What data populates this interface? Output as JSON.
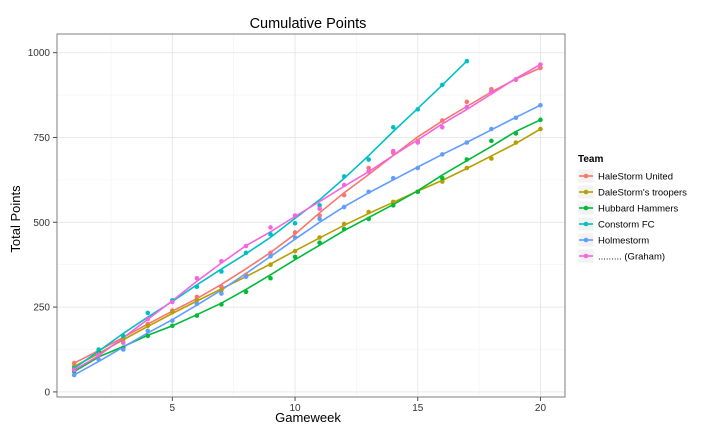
{
  "chart_data": {
    "type": "scatter",
    "title": "Cumulative Points",
    "xlabel": "Gameweek",
    "ylabel": "Total Points",
    "xlim": [
      0.3,
      21
    ],
    "ylim": [
      -15,
      1055
    ],
    "xticks": [
      5,
      10,
      15,
      20
    ],
    "yticks": [
      0,
      250,
      500,
      750,
      1000
    ],
    "grid": true,
    "trend_lines": true,
    "legend_title": "Team",
    "legend_position": "right",
    "series": [
      {
        "name": "HaleStorm United",
        "color": "#F8766D",
        "x": [
          1,
          2,
          3,
          4,
          5,
          6,
          7,
          8,
          9,
          10,
          11,
          12,
          13,
          14,
          15,
          16,
          17,
          18,
          19,
          20
        ],
        "y": [
          85,
          120,
          160,
          200,
          240,
          280,
          310,
          345,
          410,
          470,
          520,
          580,
          660,
          705,
          740,
          800,
          855,
          892,
          920,
          955
        ]
      },
      {
        "name": "DaleStorm's troopers",
        "color": "#B79F00",
        "x": [
          1,
          2,
          3,
          4,
          5,
          6,
          7,
          8,
          9,
          10,
          11,
          12,
          13,
          14,
          15,
          16,
          17,
          18,
          19,
          20
        ],
        "y": [
          75,
          110,
          155,
          195,
          235,
          270,
          300,
          340,
          375,
          415,
          455,
          495,
          530,
          560,
          590,
          620,
          660,
          688,
          735,
          775
        ]
      },
      {
        "name": "Hubbard Hammers",
        "color": "#00BA38",
        "x": [
          1,
          2,
          3,
          4,
          5,
          6,
          7,
          8,
          9,
          10,
          11,
          12,
          13,
          14,
          15,
          16,
          17,
          18,
          19,
          20
        ],
        "y": [
          60,
          120,
          130,
          165,
          195,
          225,
          258,
          295,
          335,
          398,
          440,
          480,
          510,
          550,
          590,
          630,
          685,
          740,
          762,
          802
        ]
      },
      {
        "name": "Constorm FC",
        "color": "#00BFC4",
        "x": [
          1,
          2,
          3,
          4,
          5,
          6,
          7,
          8,
          9,
          10,
          11,
          12,
          13,
          14,
          15,
          16,
          17
        ],
        "y": [
          70,
          125,
          165,
          233,
          270,
          310,
          355,
          410,
          465,
          497,
          550,
          635,
          685,
          780,
          833,
          905,
          975
        ]
      },
      {
        "name": "Holmestorm",
        "color": "#619CFF",
        "x": [
          1,
          2,
          3,
          4,
          5,
          6,
          7,
          8,
          9,
          10,
          11,
          12,
          13,
          14,
          15,
          16,
          17,
          18,
          19,
          20
        ],
        "y": [
          50,
          95,
          125,
          180,
          210,
          260,
          290,
          340,
          400,
          455,
          510,
          545,
          590,
          630,
          660,
          700,
          735,
          775,
          808,
          845
        ]
      },
      {
        "name": "......... (Graham)",
        "color": "#F564E3",
        "x": [
          1,
          2,
          3,
          4,
          5,
          6,
          7,
          8,
          9,
          10,
          11,
          12,
          13,
          14,
          15,
          16,
          17,
          18,
          19,
          20
        ],
        "y": [
          65,
          110,
          145,
          215,
          265,
          335,
          385,
          430,
          485,
          520,
          540,
          610,
          650,
          710,
          735,
          780,
          840,
          885,
          922,
          965
        ]
      }
    ]
  }
}
